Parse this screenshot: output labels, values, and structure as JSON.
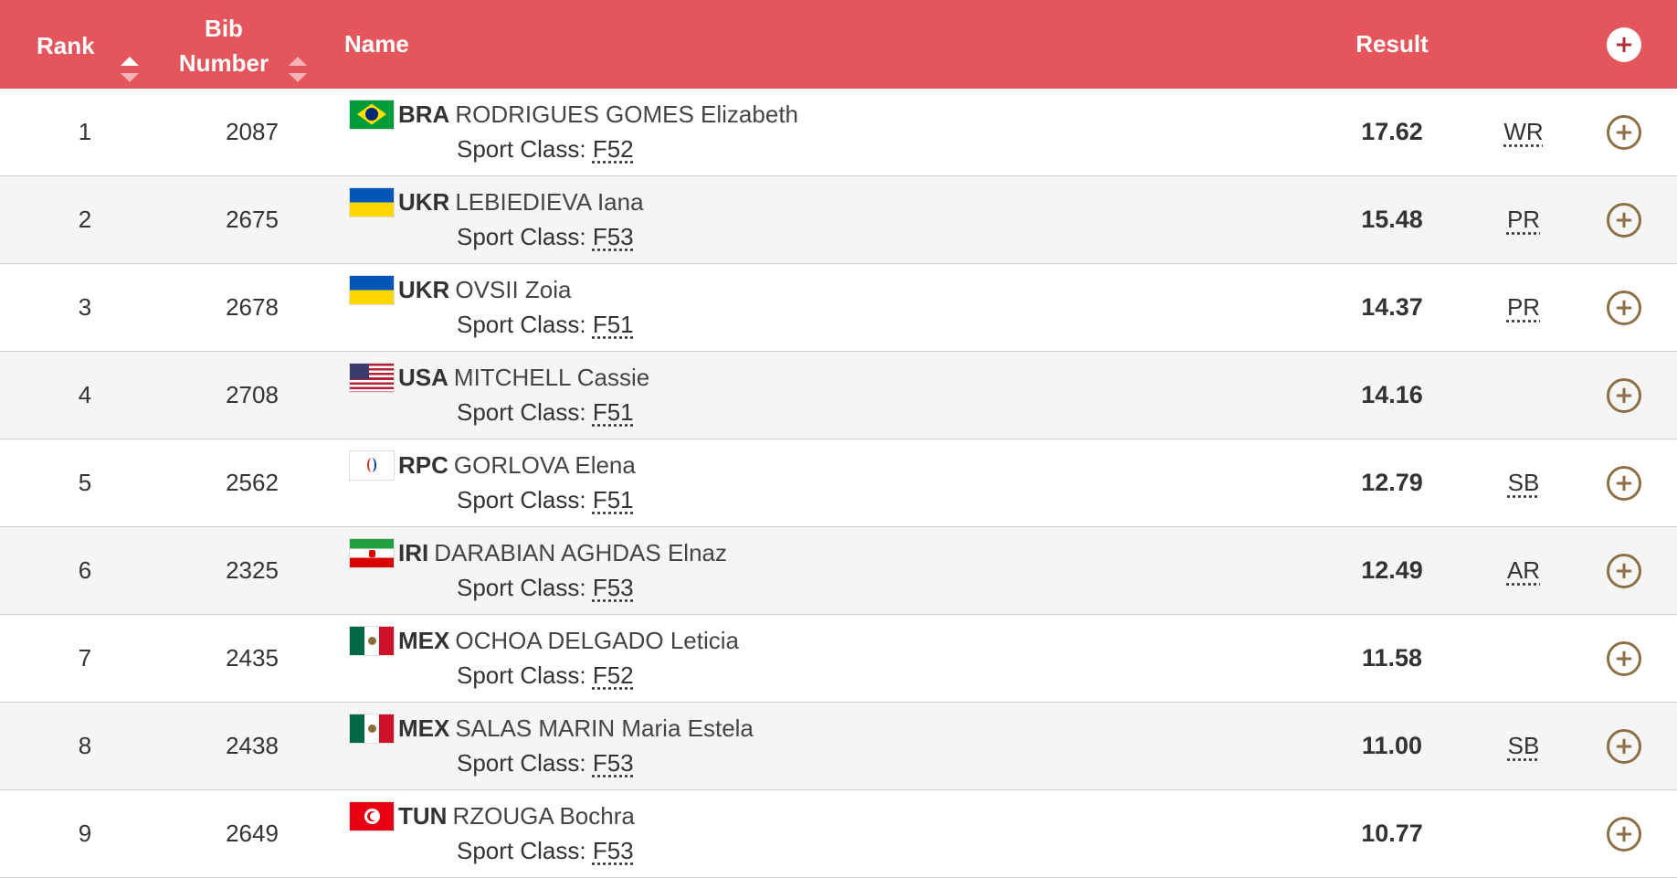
{
  "header": {
    "rank_label": "Rank",
    "bib_label_line1": "Bib",
    "bib_label_line2": "Number",
    "name_label": "Name",
    "result_label": "Result",
    "expand_all_icon": "plus-circle-icon"
  },
  "sport_class_label": "Sport Class:",
  "expand_icon": "plus-circle-icon",
  "colors": {
    "header_bg": "#e4555c",
    "header_text": "#ffffff",
    "expand_icon": "#8c7044",
    "row_alt_bg": "#f5f5f5"
  },
  "rows": [
    {
      "rank": "1",
      "bib": "2087",
      "noc": "BRA",
      "flag": "flag-brazil-icon",
      "name": "RODRIGUES GOMES Elizabeth",
      "sport_class": "F52",
      "result": "17.62",
      "record": "WR"
    },
    {
      "rank": "2",
      "bib": "2675",
      "noc": "UKR",
      "flag": "flag-ukraine-icon",
      "name": "LEBIEDIEVA Iana",
      "sport_class": "F53",
      "result": "15.48",
      "record": "PR"
    },
    {
      "rank": "3",
      "bib": "2678",
      "noc": "UKR",
      "flag": "flag-ukraine-icon",
      "name": "OVSII Zoia",
      "sport_class": "F51",
      "result": "14.37",
      "record": "PR"
    },
    {
      "rank": "4",
      "bib": "2708",
      "noc": "USA",
      "flag": "flag-usa-icon",
      "name": "MITCHELL Cassie",
      "sport_class": "F51",
      "result": "14.16",
      "record": ""
    },
    {
      "rank": "5",
      "bib": "2562",
      "noc": "RPC",
      "flag": "flag-rpc-icon",
      "name": "GORLOVA Elena",
      "sport_class": "F51",
      "result": "12.79",
      "record": "SB"
    },
    {
      "rank": "6",
      "bib": "2325",
      "noc": "IRI",
      "flag": "flag-iran-icon",
      "name": "DARABIAN AGHDAS Elnaz",
      "sport_class": "F53",
      "result": "12.49",
      "record": "AR"
    },
    {
      "rank": "7",
      "bib": "2435",
      "noc": "MEX",
      "flag": "flag-mexico-icon",
      "name": "OCHOA DELGADO Leticia",
      "sport_class": "F52",
      "result": "11.58",
      "record": ""
    },
    {
      "rank": "8",
      "bib": "2438",
      "noc": "MEX",
      "flag": "flag-mexico-icon",
      "name": "SALAS MARIN Maria Estela",
      "sport_class": "F53",
      "result": "11.00",
      "record": "SB"
    },
    {
      "rank": "9",
      "bib": "2649",
      "noc": "TUN",
      "flag": "flag-tunisia-icon",
      "name": "RZOUGA Bochra",
      "sport_class": "F53",
      "result": "10.77",
      "record": ""
    }
  ]
}
